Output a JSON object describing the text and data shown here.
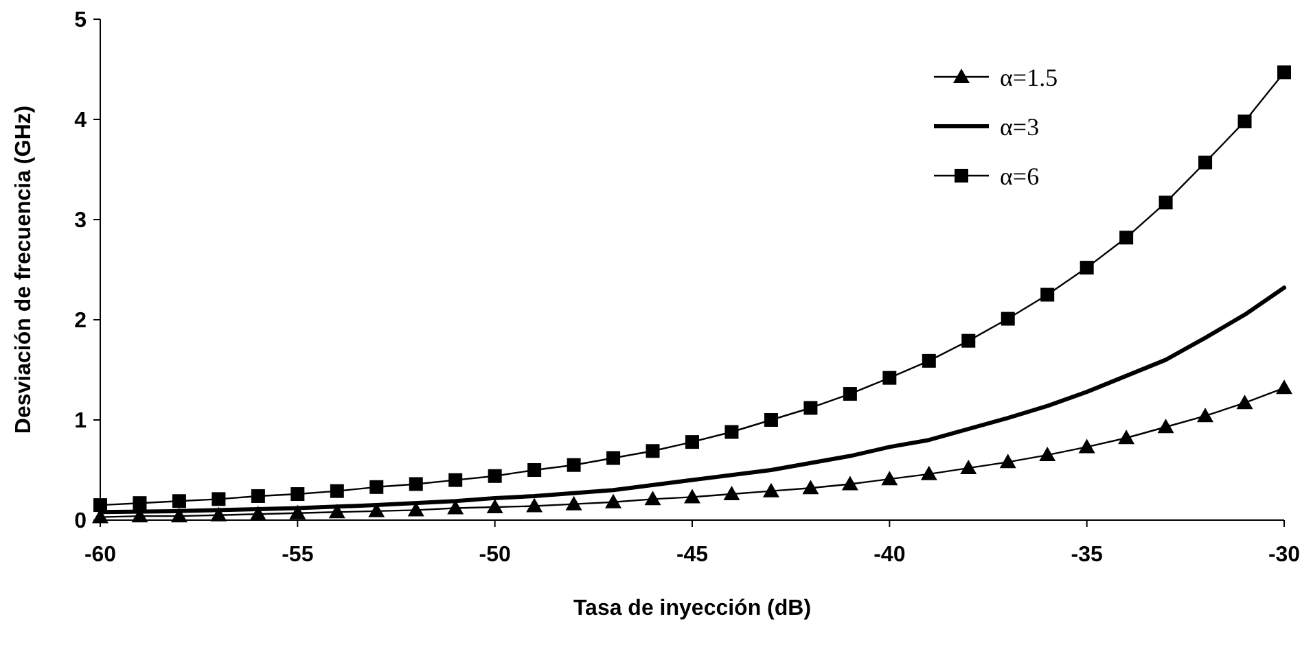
{
  "chart_data": {
    "type": "line",
    "xlabel": "Tasa de inyección  (dB)",
    "ylabel": "Desviación de frecuencia (GHz)",
    "xlim": [
      -60,
      -30
    ],
    "xticks": [
      -60,
      -55,
      -50,
      -45,
      -40,
      -35,
      -30
    ],
    "ylim": [
      0,
      5
    ],
    "yticks": [
      0,
      1,
      2,
      3,
      4,
      5
    ],
    "grid": false,
    "legend": "top right",
    "series": [
      {
        "name": "α=1.5",
        "color": "#000000",
        "marker": "triangle",
        "x": [
          -60,
          -59,
          -58,
          -57,
          -56,
          -55,
          -54,
          -53,
          -52,
          -51,
          -50,
          -49,
          -48,
          -47,
          -46,
          -45,
          -44,
          -43,
          -42,
          -41,
          -40,
          -39,
          -38,
          -37,
          -36,
          -35,
          -34,
          -33,
          -32,
          -31,
          -30
        ],
        "values": [
          0.03,
          0.04,
          0.04,
          0.05,
          0.06,
          0.07,
          0.08,
          0.09,
          0.1,
          0.12,
          0.13,
          0.14,
          0.16,
          0.18,
          0.21,
          0.23,
          0.26,
          0.29,
          0.32,
          0.36,
          0.41,
          0.46,
          0.52,
          0.58,
          0.65,
          0.73,
          0.82,
          0.93,
          1.04,
          1.17,
          1.32
        ]
      },
      {
        "name": "α=3",
        "color": "#000000",
        "marker": "none",
        "x": [
          -60,
          -58,
          -56,
          -55,
          -53,
          -51,
          -50,
          -49,
          -47,
          -45,
          -43,
          -41,
          -40,
          -39,
          -37,
          -36,
          -35,
          -33,
          -32,
          -31,
          -30
        ],
        "values": [
          0.08,
          0.09,
          0.11,
          0.12,
          0.15,
          0.19,
          0.22,
          0.24,
          0.3,
          0.4,
          0.5,
          0.64,
          0.73,
          0.8,
          1.02,
          1.14,
          1.28,
          1.6,
          1.82,
          2.05,
          2.32
        ]
      },
      {
        "name": "α=6",
        "color": "#000000",
        "marker": "square",
        "x": [
          -60,
          -59,
          -58,
          -57,
          -56,
          -55,
          -54,
          -53,
          -52,
          -51,
          -50,
          -49,
          -48,
          -47,
          -46,
          -45,
          -44,
          -43,
          -42,
          -41,
          -40,
          -39,
          -38,
          -37,
          -36,
          -35,
          -34,
          -33,
          -32,
          -31,
          -30
        ],
        "values": [
          0.15,
          0.17,
          0.19,
          0.21,
          0.24,
          0.26,
          0.29,
          0.33,
          0.36,
          0.4,
          0.44,
          0.5,
          0.55,
          0.62,
          0.69,
          0.78,
          0.88,
          1.0,
          1.12,
          1.26,
          1.42,
          1.59,
          1.79,
          2.01,
          2.25,
          2.52,
          2.82,
          3.17,
          3.57,
          3.98,
          4.47
        ]
      }
    ]
  }
}
